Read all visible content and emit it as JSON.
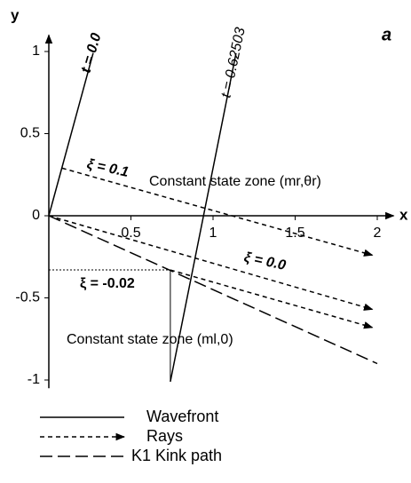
{
  "chart_data": {
    "type": "line",
    "panel_label": "a",
    "x_label": "x",
    "y_label": "y",
    "xlim": [
      0,
      2.1
    ],
    "ylim": [
      -1.05,
      1.1
    ],
    "xticks": [
      0.5,
      1,
      1.5,
      2
    ],
    "yticks": [
      -1,
      -0.5,
      0,
      0.5,
      1
    ],
    "series": [
      {
        "name": "Wavefront",
        "color": "#000000",
        "style": "solid",
        "arrow": false,
        "lines": [
          {
            "x": [
              0,
              0.27
            ],
            "y": [
              0,
              0.99
            ]
          },
          {
            "x": [
              0.74,
              1.14
            ],
            "y": [
              -1.01,
              0.99
            ]
          }
        ]
      },
      {
        "name": "Rays",
        "color": "#000000",
        "style": "dashed",
        "arrow": true,
        "lines": [
          {
            "x": [
              0.08,
              1.97
            ],
            "y": [
              0.29,
              -0.24
            ]
          },
          {
            "x": [
              0,
              1.97
            ],
            "y": [
              0,
              -0.57
            ]
          },
          {
            "x": [
              0.74,
              1.97
            ],
            "y": [
              -0.33,
              -0.68
            ]
          }
        ]
      },
      {
        "name": "K1 Kink path",
        "color": "#000000",
        "style": "longdash",
        "arrow": false,
        "lines": [
          {
            "x": [
              0,
              2
            ],
            "y": [
              0,
              -0.9
            ]
          }
        ]
      }
    ],
    "guides": [
      {
        "x": [
          0,
          0.74
        ],
        "y": [
          -0.33,
          -0.33
        ],
        "style": "dotted"
      },
      {
        "x": [
          0.74,
          0.74
        ],
        "y": [
          -0.33,
          -1.01
        ],
        "style": "thin"
      }
    ],
    "annotations": [
      "t = 0.0",
      "t = 0.62503",
      "ξ = 0.1",
      "Constant state zone (mr,θr)",
      "ξ = 0.0",
      "ξ = -0.02",
      "Constant state zone (ml,0)"
    ]
  }
}
